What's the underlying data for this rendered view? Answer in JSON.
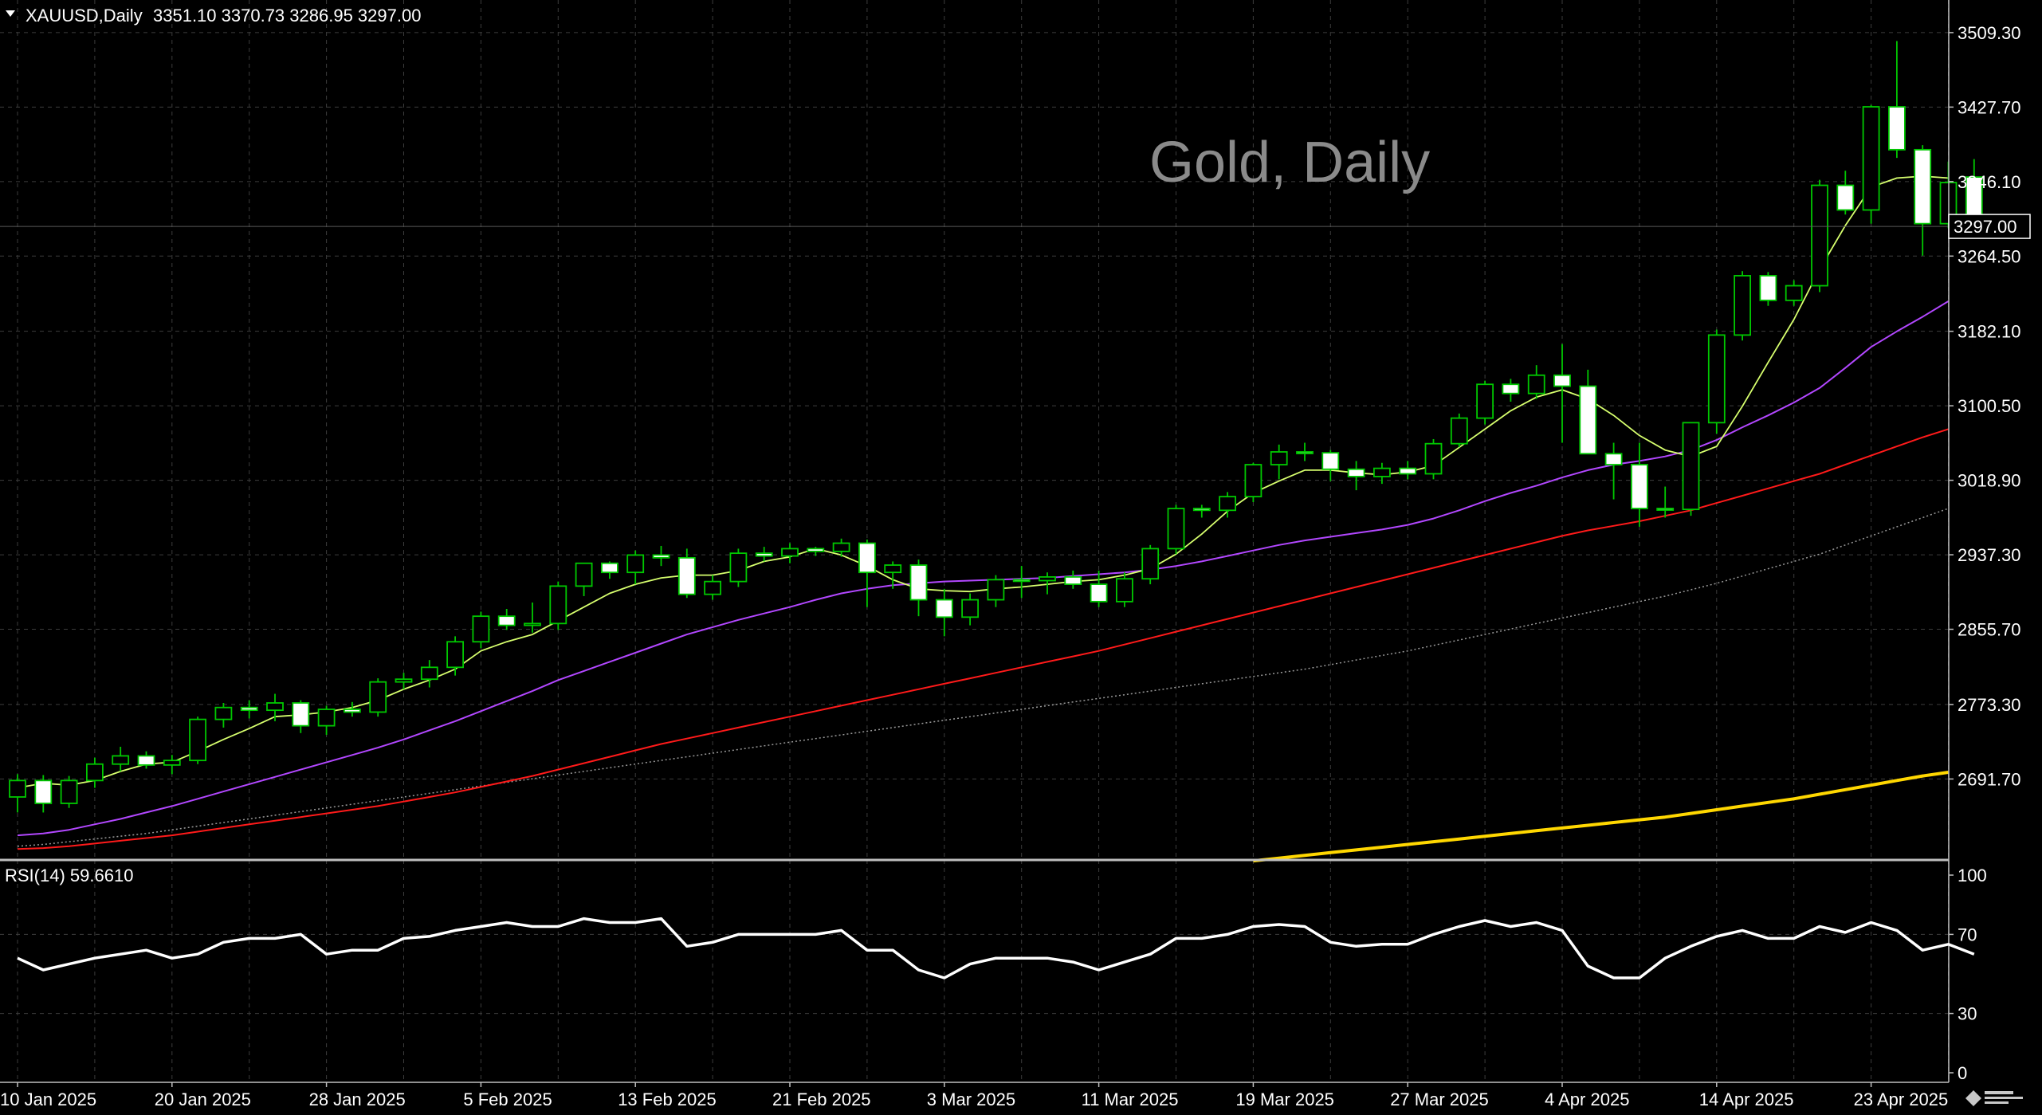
{
  "header": {
    "symbol": "XAUUSD,Daily",
    "ohlc": "3351.10 3370.73 3286.95 3297.00"
  },
  "watermark": "Gold, Daily",
  "colors": {
    "background": "#000000",
    "grid": "#3d3d3d",
    "candle_up": "#000000",
    "candle_down": "#ffffff",
    "candle_wick": "#00c800",
    "ma_fast": "#d7ff6e",
    "ma_mid": "#b247ff",
    "ma_slow": "#ff1a1a",
    "ma_dotted": "#9a9a9a",
    "ma_long": "#ffd700",
    "rsi_line": "#ffffff"
  },
  "chart_data": [
    {
      "type": "candlestick",
      "title": "Gold, Daily",
      "symbol": "XAUUSD,Daily",
      "last_price": 3297.0,
      "last_price_label": "3297.00",
      "ylim": [
        2603,
        3545
      ],
      "y_tick_labels": [
        "3509.30",
        "3427.70",
        "3346.10",
        "3264.50",
        "3182.10",
        "3100.50",
        "3018.90",
        "2937.30",
        "2855.70",
        "2773.30",
        "2691.70"
      ],
      "x_tick_labels": [
        "10 Jan 2025",
        "20 Jan 2025",
        "28 Jan 2025",
        "5 Feb 2025",
        "13 Feb 2025",
        "21 Feb 2025",
        "3 Mar 2025",
        "11 Mar 2025",
        "19 Mar 2025",
        "27 Mar 2025",
        "4 Apr 2025",
        "14 Apr 2025",
        "23 Apr 2025"
      ],
      "x_tick_index": [
        0,
        6,
        12,
        18,
        24,
        30,
        36,
        42,
        48,
        54,
        60,
        66,
        72
      ],
      "candles": [
        [
          2672,
          2697,
          2655,
          2690
        ],
        [
          2690,
          2696,
          2655,
          2665
        ],
        [
          2665,
          2695,
          2660,
          2690
        ],
        [
          2690,
          2715,
          2682,
          2708
        ],
        [
          2708,
          2727,
          2700,
          2717
        ],
        [
          2717,
          2722,
          2703,
          2707
        ],
        [
          2707,
          2718,
          2697,
          2712
        ],
        [
          2712,
          2760,
          2708,
          2757
        ],
        [
          2757,
          2775,
          2748,
          2770
        ],
        [
          2770,
          2778,
          2758,
          2767
        ],
        [
          2767,
          2785,
          2755,
          2775
        ],
        [
          2775,
          2778,
          2742,
          2750
        ],
        [
          2750,
          2772,
          2740,
          2768
        ],
        [
          2768,
          2776,
          2760,
          2765
        ],
        [
          2765,
          2802,
          2760,
          2798
        ],
        [
          2798,
          2808,
          2790,
          2801
        ],
        [
          2801,
          2822,
          2792,
          2814
        ],
        [
          2814,
          2848,
          2805,
          2842
        ],
        [
          2842,
          2875,
          2835,
          2870
        ],
        [
          2870,
          2878,
          2855,
          2860
        ],
        [
          2860,
          2885,
          2852,
          2862
        ],
        [
          2862,
          2908,
          2855,
          2903
        ],
        [
          2903,
          2922,
          2892,
          2928
        ],
        [
          2928,
          2930,
          2911,
          2918
        ],
        [
          2918,
          2942,
          2905,
          2937
        ],
        [
          2937,
          2947,
          2925,
          2934
        ],
        [
          2934,
          2944,
          2890,
          2894
        ],
        [
          2894,
          2915,
          2888,
          2908
        ],
        [
          2908,
          2944,
          2902,
          2939
        ],
        [
          2939,
          2946,
          2930,
          2936
        ],
        [
          2936,
          2950,
          2928,
          2944
        ],
        [
          2944,
          2946,
          2936,
          2941
        ],
        [
          2941,
          2955,
          2935,
          2950
        ],
        [
          2950,
          2954,
          2880,
          2918
        ],
        [
          2918,
          2930,
          2900,
          2926
        ],
        [
          2926,
          2932,
          2870,
          2888
        ],
        [
          2888,
          2900,
          2848,
          2869
        ],
        [
          2869,
          2895,
          2860,
          2888
        ],
        [
          2888,
          2915,
          2880,
          2910
        ],
        [
          2910,
          2925,
          2890,
          2909
        ],
        [
          2909,
          2918,
          2894,
          2913
        ],
        [
          2913,
          2920,
          2900,
          2905
        ],
        [
          2905,
          2920,
          2880,
          2886
        ],
        [
          2886,
          2918,
          2880,
          2911
        ],
        [
          2911,
          2948,
          2905,
          2944
        ],
        [
          2944,
          2992,
          2938,
          2988
        ],
        [
          2988,
          2992,
          2978,
          2986
        ],
        [
          2986,
          3006,
          2978,
          3001
        ],
        [
          3001,
          3038,
          2995,
          3036
        ],
        [
          3036,
          3058,
          3020,
          3050
        ],
        [
          3050,
          3060,
          3040,
          3049
        ],
        [
          3049,
          3052,
          3018,
          3031
        ],
        [
          3031,
          3040,
          3008,
          3023
        ],
        [
          3023,
          3038,
          3015,
          3032
        ],
        [
          3032,
          3040,
          3020,
          3026
        ],
        [
          3026,
          3064,
          3020,
          3059
        ],
        [
          3059,
          3092,
          3055,
          3087
        ],
        [
          3087,
          3128,
          3080,
          3124
        ],
        [
          3124,
          3130,
          3105,
          3114
        ],
        [
          3114,
          3145,
          3108,
          3134
        ],
        [
          3134,
          3168,
          3060,
          3122
        ],
        [
          3122,
          3140,
          3050,
          3048
        ],
        [
          3048,
          3060,
          2998,
          3036
        ],
        [
          3036,
          3060,
          2968,
          2988
        ],
        [
          2988,
          3012,
          2978,
          2987
        ],
        [
          2987,
          3078,
          2980,
          3082
        ],
        [
          3082,
          3184,
          3070,
          3178
        ],
        [
          3178,
          3248,
          3172,
          3243
        ],
        [
          3243,
          3247,
          3210,
          3216
        ],
        [
          3216,
          3238,
          3210,
          3232
        ],
        [
          3232,
          3348,
          3225,
          3342
        ],
        [
          3342,
          3358,
          3310,
          3315
        ],
        [
          3315,
          3430,
          3300,
          3428
        ],
        [
          3428,
          3500,
          3372,
          3381
        ],
        [
          3381,
          3386,
          3265,
          3300
        ],
        [
          3300,
          3368,
          3295,
          3345
        ],
        [
          3351.1,
          3370.73,
          3286.95,
          3297.0
        ]
      ],
      "ma_fast": [
        2682,
        2687,
        2685,
        2690,
        2700,
        2708,
        2710,
        2722,
        2735,
        2747,
        2760,
        2762,
        2765,
        2770,
        2778,
        2790,
        2800,
        2812,
        2832,
        2842,
        2850,
        2865,
        2880,
        2895,
        2905,
        2912,
        2915,
        2915,
        2920,
        2930,
        2935,
        2944,
        2937,
        2925,
        2910,
        2900,
        2898,
        2897,
        2900,
        2902,
        2905,
        2908,
        2910,
        2915,
        2922,
        2938,
        2960,
        2985,
        3005,
        3018,
        3030,
        3030,
        3027,
        3025,
        3028,
        3035,
        3055,
        3075,
        3095,
        3110,
        3118,
        3108,
        3090,
        3068,
        3052,
        3045,
        3056,
        3100,
        3148,
        3195,
        3250,
        3298,
        3340,
        3350,
        3352,
        3350
      ],
      "ma_mid": [
        2630,
        2632,
        2636,
        2642,
        2648,
        2655,
        2662,
        2670,
        2678,
        2686,
        2694,
        2702,
        2710,
        2718,
        2726,
        2735,
        2745,
        2755,
        2766,
        2777,
        2788,
        2800,
        2810,
        2820,
        2830,
        2840,
        2850,
        2858,
        2866,
        2873,
        2880,
        2888,
        2895,
        2900,
        2904,
        2906,
        2908,
        2909,
        2910,
        2911,
        2912,
        2914,
        2916,
        2918,
        2921,
        2925,
        2930,
        2936,
        2942,
        2948,
        2953,
        2957,
        2961,
        2965,
        2970,
        2977,
        2986,
        2996,
        3005,
        3013,
        3022,
        3030,
        3036,
        3040,
        3045,
        3052,
        3063,
        3077,
        3090,
        3104,
        3120,
        3142,
        3165,
        3182,
        3198,
        3215
      ],
      "ma_slow": [
        2615,
        2616,
        2618,
        2621,
        2624,
        2627,
        2630,
        2634,
        2638,
        2642,
        2646,
        2650,
        2654,
        2658,
        2662,
        2667,
        2672,
        2677,
        2683,
        2689,
        2695,
        2702,
        2709,
        2716,
        2723,
        2730,
        2736,
        2742,
        2748,
        2754,
        2760,
        2766,
        2772,
        2778,
        2784,
        2790,
        2796,
        2802,
        2808,
        2814,
        2820,
        2826,
        2832,
        2839,
        2846,
        2853,
        2860,
        2867,
        2874,
        2881,
        2888,
        2895,
        2902,
        2909,
        2916,
        2923,
        2930,
        2937,
        2944,
        2951,
        2958,
        2964,
        2969,
        2974,
        2980,
        2986,
        2994,
        3002,
        3010,
        3018,
        3026,
        3036,
        3046,
        3056,
        3066,
        3075
      ],
      "ma_dotted": [
        2618,
        2620,
        2623,
        2626,
        2629,
        2632,
        2636,
        2640,
        2644,
        2648,
        2652,
        2656,
        2660,
        2664,
        2668,
        2672,
        2676,
        2680,
        2684,
        2688,
        2692,
        2696,
        2700,
        2704,
        2708,
        2712,
        2716,
        2720,
        2724,
        2728,
        2732,
        2736,
        2740,
        2744,
        2748,
        2752,
        2756,
        2760,
        2764,
        2768,
        2772,
        2776,
        2780,
        2784,
        2788,
        2792,
        2796,
        2800,
        2804,
        2808,
        2812,
        2817,
        2822,
        2827,
        2832,
        2838,
        2844,
        2850,
        2856,
        2862,
        2868,
        2874,
        2880,
        2886,
        2892,
        2899,
        2906,
        2914,
        2922,
        2930,
        2938,
        2948,
        2958,
        2968,
        2978,
        2988
      ],
      "ma_long_start_index": 48,
      "ma_long": [
        2602,
        2605,
        2608,
        2611,
        2614,
        2617,
        2620,
        2623,
        2626,
        2629,
        2632,
        2635,
        2638,
        2641,
        2644,
        2647,
        2650,
        2654,
        2658,
        2662,
        2666,
        2670,
        2675,
        2680,
        2685,
        2690,
        2695,
        2699
      ]
    },
    {
      "type": "line",
      "title": "RSI(14) 59.6610",
      "series_name": "RSI(14)",
      "current_value": "59.6610",
      "ylim": [
        0,
        100
      ],
      "y_ticks": [
        100,
        70,
        30,
        0
      ],
      "y_tick_labels": [
        "100",
        "70",
        "30",
        "0"
      ],
      "values": [
        58,
        52,
        55,
        58,
        60,
        62,
        58,
        60,
        66,
        68,
        68,
        70,
        60,
        62,
        62,
        68,
        69,
        72,
        74,
        76,
        74,
        74,
        78,
        76,
        76,
        78,
        64,
        66,
        70,
        70,
        70,
        70,
        72,
        62,
        62,
        52,
        48,
        55,
        58,
        58,
        58,
        56,
        52,
        56,
        60,
        68,
        68,
        70,
        74,
        75,
        74,
        66,
        64,
        65,
        65,
        70,
        74,
        77,
        74,
        76,
        72,
        54,
        48,
        48,
        58,
        64,
        69,
        72,
        68,
        68,
        74,
        71,
        76,
        72,
        62,
        65,
        60
      ]
    }
  ]
}
